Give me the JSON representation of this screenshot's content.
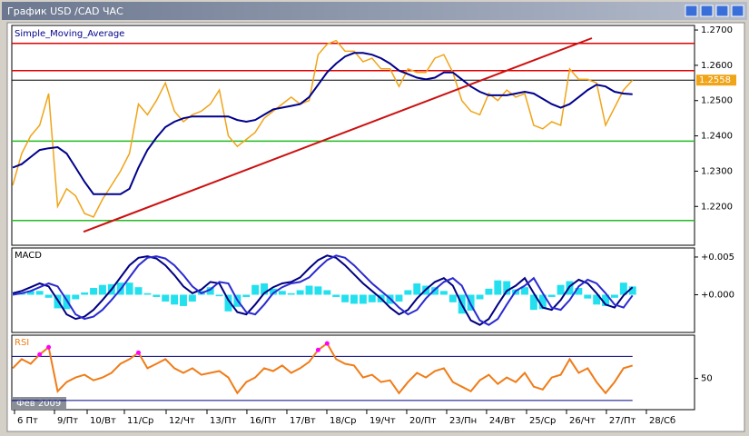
{
  "window": {
    "title": "График USD /CAD ЧАС",
    "date_badge": "Фев 2009"
  },
  "chart_data": [
    {
      "type": "line",
      "xlim": [
        -0.1,
        75.9
      ],
      "ylim": [
        1.209,
        1.2713
      ],
      "yticks": [
        {
          "value": 1.22,
          "label": "1.2200"
        },
        {
          "value": 1.23,
          "label": "1.2300"
        },
        {
          "value": 1.24,
          "label": "1.2400"
        },
        {
          "value": 1.25,
          "label": "1.2500"
        },
        {
          "value": 1.26,
          "label": "1.2600"
        },
        {
          "value": 1.27,
          "label": "1.2700"
        }
      ],
      "series": [
        {
          "color": "#f0a418",
          "values": [
            1.226,
            1.235,
            1.24,
            1.243,
            1.252,
            1.22,
            1.225,
            1.223,
            1.218,
            1.217,
            1.222,
            1.226,
            1.23,
            1.235,
            1.249,
            1.246,
            1.25,
            1.255,
            1.247,
            1.244,
            1.246,
            1.247,
            1.249,
            1.253,
            1.24,
            1.237,
            1.239,
            1.241,
            1.245,
            1.247,
            1.249,
            1.251,
            1.249,
            1.25,
            1.263,
            1.266,
            1.267,
            1.264,
            1.264,
            1.261,
            1.262,
            1.259,
            1.259,
            1.254,
            1.259,
            1.258,
            1.258,
            1.262,
            1.263,
            1.258,
            1.25,
            1.247,
            1.246,
            1.252,
            1.25,
            1.253,
            1.251,
            1.252,
            1.243,
            1.242,
            1.244,
            1.243,
            1.259,
            1.256,
            1.256,
            1.255,
            1.243,
            1.248,
            1.253,
            1.2558
          ]
        },
        {
          "name": "Simple_Moving_Average",
          "color": "#00008b",
          "values": [
            1.231,
            1.232,
            1.234,
            1.236,
            1.2365,
            1.2368,
            1.235,
            1.231,
            1.227,
            1.2235,
            1.2235,
            1.2235,
            1.2235,
            1.225,
            1.231,
            1.236,
            1.2395,
            1.2425,
            1.244,
            1.245,
            1.2455,
            1.2455,
            1.2455,
            1.2455,
            1.2455,
            1.2445,
            1.244,
            1.2445,
            1.246,
            1.2475,
            1.248,
            1.2485,
            1.249,
            1.251,
            1.2545,
            1.258,
            1.2605,
            1.2625,
            1.2635,
            1.2635,
            1.263,
            1.262,
            1.2605,
            1.2585,
            1.2575,
            1.2565,
            1.256,
            1.2565,
            1.258,
            1.258,
            1.256,
            1.254,
            1.2525,
            1.2515,
            1.2515,
            1.2515,
            1.252,
            1.2525,
            1.252,
            1.2505,
            1.249,
            1.248,
            1.249,
            1.251,
            1.253,
            1.2545,
            1.254,
            1.2525,
            1.252,
            1.2518
          ]
        }
      ],
      "hlines": [
        {
          "value": 1.2662,
          "color": "#e00000"
        },
        {
          "value": 1.2585,
          "color": "#e00000"
        },
        {
          "value": 1.2385,
          "color": "#22bb22"
        },
        {
          "value": 1.216,
          "color": "#22bb22"
        }
      ],
      "current_price": {
        "value": 1.2558,
        "label": "1.2558",
        "color": "#000000",
        "label_color": "#f0a418"
      },
      "trendline": {
        "x": [
          7.88,
          64.48
        ],
        "values": [
          1.2128,
          1.2677
        ],
        "color": "#cc1010"
      }
    },
    {
      "type": "macd",
      "title": "MACD",
      "xlim": [
        -0.1,
        75.9
      ],
      "ylim": [
        -0.005,
        0.0062
      ],
      "yticks": [
        {
          "value": 0,
          "label": "+0.000"
        },
        {
          "value": 0.005,
          "label": "+0.005"
        }
      ],
      "series": [
        {
          "type": "bar",
          "color": "#22e0ee",
          "values": [
            0.0002,
            0.0003,
            0.0005,
            0.0005,
            -0.0004,
            -0.0018,
            -0.0019,
            -0.0006,
            0.0003,
            0.0009,
            0.0013,
            0.0014,
            0.0016,
            0.0016,
            0.001,
            0.0002,
            -0.0003,
            -0.0009,
            -0.0013,
            -0.0015,
            -0.0009,
            0.0005,
            0.001,
            -0.0002,
            -0.0022,
            -0.0016,
            -0.0003,
            0.0013,
            0.0015,
            0.0008,
            0.0005,
            0.0002,
            0.0006,
            0.0012,
            0.0011,
            0.0006,
            -0.0003,
            -0.001,
            -0.0012,
            -0.0012,
            -0.001,
            -0.001,
            -0.0012,
            -0.0009,
            0.0006,
            0.0015,
            0.0012,
            0.001,
            0.0005,
            -0.001,
            -0.0025,
            -0.0021,
            -0.0006,
            0.0008,
            0.0019,
            0.0018,
            0.0007,
            0.001,
            -0.002,
            -0.0019,
            -0.0003,
            0.0013,
            0.0018,
            0.0009,
            -0.0005,
            -0.0013,
            -0.0015,
            -0.0004,
            0.0016,
            0.0011
          ]
        },
        {
          "color": "#000080",
          "values": [
            0.0002,
            0.0005,
            0.001,
            0.0015,
            0.0011,
            -0.0007,
            -0.0026,
            -0.0032,
            -0.0029,
            -0.002,
            -0.0007,
            0.0007,
            0.0023,
            0.0039,
            0.0049,
            0.0051,
            0.0048,
            0.0039,
            0.0026,
            0.0011,
            0.0002,
            0.0007,
            0.0017,
            0.0015,
            -0.0007,
            -0.0023,
            -0.0026,
            -0.0013,
            0.0002,
            0.001,
            0.0015,
            0.0017,
            0.0023,
            0.0035,
            0.0046,
            0.0052,
            0.0049,
            0.0039,
            0.0027,
            0.0015,
            0.0005,
            -0.0005,
            -0.0017,
            -0.0026,
            -0.002,
            -0.0005,
            0.0007,
            0.0017,
            0.0022,
            0.0012,
            -0.0013,
            -0.0034,
            -0.004,
            -0.0032,
            -0.0013,
            0.0005,
            0.0012,
            0.0022,
            0.0002,
            -0.0017,
            -0.002,
            -0.0007,
            0.0011,
            0.002,
            0.0015,
            0.0002,
            -0.0013,
            -0.0017,
            -0.0001,
            0.001
          ]
        },
        {
          "color": "#2a2ad0",
          "values": [
            0.0,
            0.0002,
            0.0005,
            0.001,
            0.0015,
            0.0011,
            -0.0007,
            -0.0026,
            -0.0032,
            -0.0029,
            -0.002,
            -0.0007,
            0.0007,
            0.0023,
            0.0039,
            0.0049,
            0.0051,
            0.0048,
            0.0039,
            0.0026,
            0.0011,
            0.0002,
            0.0007,
            0.0017,
            0.0015,
            -0.0007,
            -0.0023,
            -0.0026,
            -0.0013,
            0.0002,
            0.001,
            0.0015,
            0.0017,
            0.0023,
            0.0035,
            0.0046,
            0.0052,
            0.0049,
            0.0039,
            0.0027,
            0.0015,
            0.0005,
            -0.0005,
            -0.0017,
            -0.0026,
            -0.002,
            -0.0005,
            0.0007,
            0.0017,
            0.0022,
            0.0012,
            -0.0013,
            -0.0034,
            -0.004,
            -0.0032,
            -0.0013,
            0.0005,
            0.0012,
            0.0022,
            0.0002,
            -0.0017,
            -0.002,
            -0.0007,
            0.0011,
            0.002,
            0.0015,
            0.0002,
            -0.0013,
            -0.0017,
            -0.0001
          ]
        }
      ]
    },
    {
      "type": "rsi",
      "title": "RSI",
      "xlim": [
        -0.1,
        75.9
      ],
      "ylim": [
        21.7,
        89.2
      ],
      "yticks": [
        50
      ],
      "levels": [
        30,
        70
      ],
      "level_color": "#000080",
      "color": "#f07c18",
      "overbought_color": "#ff00ff",
      "values": [
        59.2,
        67.5,
        63.3,
        71.7,
        78.3,
        38.3,
        46.7,
        50.8,
        53.3,
        48.3,
        50.8,
        55,
        63.3,
        67.5,
        73.3,
        59.2,
        63.3,
        67.5,
        59.2,
        55,
        59.2,
        53.3,
        55,
        56.7,
        50.8,
        36.7,
        46.7,
        50.8,
        59.2,
        56.7,
        61.7,
        55,
        59.2,
        65,
        75.8,
        81.7,
        67.5,
        63.3,
        61.7,
        50.8,
        53.3,
        46.7,
        48.3,
        36.7,
        46.7,
        55,
        50.8,
        56.7,
        59.2,
        46.7,
        42.5,
        38.3,
        48.3,
        53.3,
        45,
        50.8,
        46.7,
        55,
        42.5,
        40,
        50.8,
        53.3,
        67.5,
        55,
        59.2,
        46.7,
        36.7,
        46.7,
        59.2,
        61.7
      ],
      "xticks": [
        {
          "value": 0.2,
          "label": "6 Пт"
        },
        {
          "value": 4.65,
          "label": "9/Пт"
        },
        {
          "value": 8.29,
          "label": "10/Вт"
        },
        {
          "value": 12.43,
          "label": "11/Ср"
        },
        {
          "value": 17.08,
          "label": "12/Чт"
        },
        {
          "value": 21.63,
          "label": "13/Пт"
        },
        {
          "value": 26.07,
          "label": "16/Пт"
        },
        {
          "value": 30.52,
          "label": "17/Вт"
        },
        {
          "value": 34.97,
          "label": "18/Ср"
        },
        {
          "value": 39.41,
          "label": "19/Чт"
        },
        {
          "value": 43.86,
          "label": "20/Пт"
        },
        {
          "value": 48.31,
          "label": "23/Пн"
        },
        {
          "value": 52.75,
          "label": "24/Вт"
        },
        {
          "value": 57.2,
          "label": "25/Ср"
        },
        {
          "value": 61.65,
          "label": "26/Чт"
        },
        {
          "value": 66.09,
          "label": "27/Пт"
        },
        {
          "value": 70.54,
          "label": "28/Сб"
        }
      ]
    }
  ]
}
